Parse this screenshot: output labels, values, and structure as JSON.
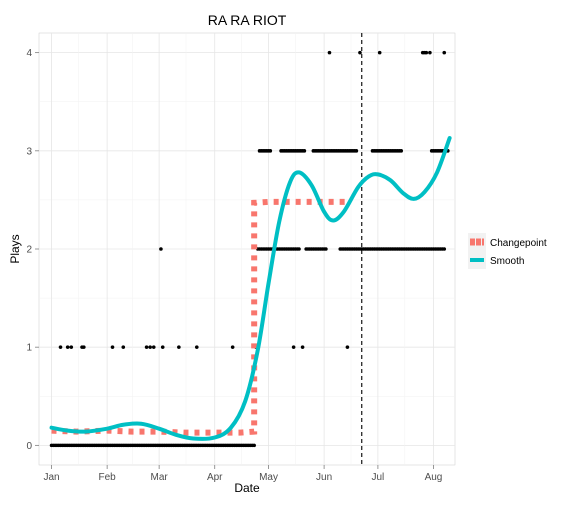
{
  "chart_data": {
    "type": "scatter",
    "title": "RA RA RIOT",
    "xlabel": "Date",
    "ylabel": "Plays",
    "x_ticks": [
      "Jan",
      "Feb",
      "Mar",
      "Apr",
      "May",
      "Jun",
      "Jul",
      "Aug"
    ],
    "x_tick_dates": [
      "2012-01-01",
      "2012-02-01",
      "2012-03-01",
      "2012-04-01",
      "2012-05-01",
      "2012-06-01",
      "2012-07-01",
      "2012-08-01"
    ],
    "xlim": [
      "2011-12-25",
      "2012-08-13"
    ],
    "y_ticks": [
      "0",
      "1",
      "2",
      "3",
      "4"
    ],
    "ylim": [
      -0.2,
      4.2
    ],
    "grid": true,
    "legend_position": "right",
    "vline": {
      "x": "2012-06-22",
      "style": "dashed",
      "color": "#000000"
    },
    "points": {
      "color": "#000000",
      "rows": [
        {
          "y": 4,
          "x": [
            "2012-06-04",
            "2012-06-21",
            "2012-07-02",
            "2012-07-26",
            "2012-07-27",
            "2012-07-28",
            "2012-07-30",
            "2012-08-07"
          ]
        },
        {
          "y": 3,
          "x_runs": [
            [
              "2012-04-26",
              "2012-05-02"
            ],
            [
              "2012-05-08",
              "2012-05-21"
            ],
            [
              "2012-05-26",
              "2012-06-19"
            ],
            [
              "2012-06-28",
              "2012-07-14"
            ],
            [
              "2012-07-31",
              "2012-08-09"
            ]
          ]
        },
        {
          "y": 2,
          "x": [
            "2012-03-02"
          ],
          "x_runs": [
            [
              "2012-04-25",
              "2012-05-18"
            ],
            [
              "2012-05-22",
              "2012-06-02"
            ],
            [
              "2012-06-10",
              "2012-08-07"
            ]
          ]
        },
        {
          "y": 1,
          "x": [
            "2012-01-06",
            "2012-01-10",
            "2012-01-12",
            "2012-01-18",
            "2012-01-19",
            "2012-02-04",
            "2012-02-10",
            "2012-02-23",
            "2012-02-25",
            "2012-02-27",
            "2012-03-03",
            "2012-03-12",
            "2012-03-22",
            "2012-04-11",
            "2012-04-24",
            "2012-05-15",
            "2012-05-20",
            "2012-06-14"
          ]
        },
        {
          "y": 0,
          "x_runs": [
            [
              "2012-01-01",
              "2012-04-23"
            ]
          ]
        }
      ]
    },
    "series": [
      {
        "name": "Changepoint",
        "style": "dotted-square",
        "color": "#f8766d",
        "x": [
          "2012-01-01",
          "2012-01-15",
          "2012-02-01",
          "2012-02-15",
          "2012-03-01",
          "2012-03-15",
          "2012-04-01",
          "2012-04-15",
          "2012-04-23",
          "2012-04-23",
          "2012-05-01",
          "2012-05-15",
          "2012-06-01",
          "2012-06-15"
        ],
        "values": [
          0.15,
          0.14,
          0.15,
          0.14,
          0.14,
          0.13,
          0.13,
          0.13,
          0.14,
          2.47,
          2.48,
          2.48,
          2.48,
          2.48
        ]
      },
      {
        "name": "Smooth",
        "style": "thick-line",
        "color": "#00bfc4",
        "x": [
          "2012-01-01",
          "2012-01-10",
          "2012-01-20",
          "2012-02-01",
          "2012-02-10",
          "2012-02-20",
          "2012-03-01",
          "2012-03-10",
          "2012-03-20",
          "2012-04-01",
          "2012-04-10",
          "2012-04-18",
          "2012-04-25",
          "2012-05-01",
          "2012-05-07",
          "2012-05-13",
          "2012-05-18",
          "2012-05-25",
          "2012-06-01",
          "2012-06-06",
          "2012-06-12",
          "2012-06-20",
          "2012-06-26",
          "2012-07-01",
          "2012-07-08",
          "2012-07-15",
          "2012-07-21",
          "2012-07-27",
          "2012-08-03",
          "2012-08-10"
        ],
        "values": [
          0.18,
          0.15,
          0.14,
          0.17,
          0.21,
          0.22,
          0.17,
          0.11,
          0.07,
          0.08,
          0.18,
          0.45,
          0.97,
          1.65,
          2.28,
          2.68,
          2.78,
          2.65,
          2.38,
          2.29,
          2.38,
          2.63,
          2.74,
          2.76,
          2.7,
          2.57,
          2.51,
          2.58,
          2.78,
          3.13
        ]
      }
    ]
  }
}
